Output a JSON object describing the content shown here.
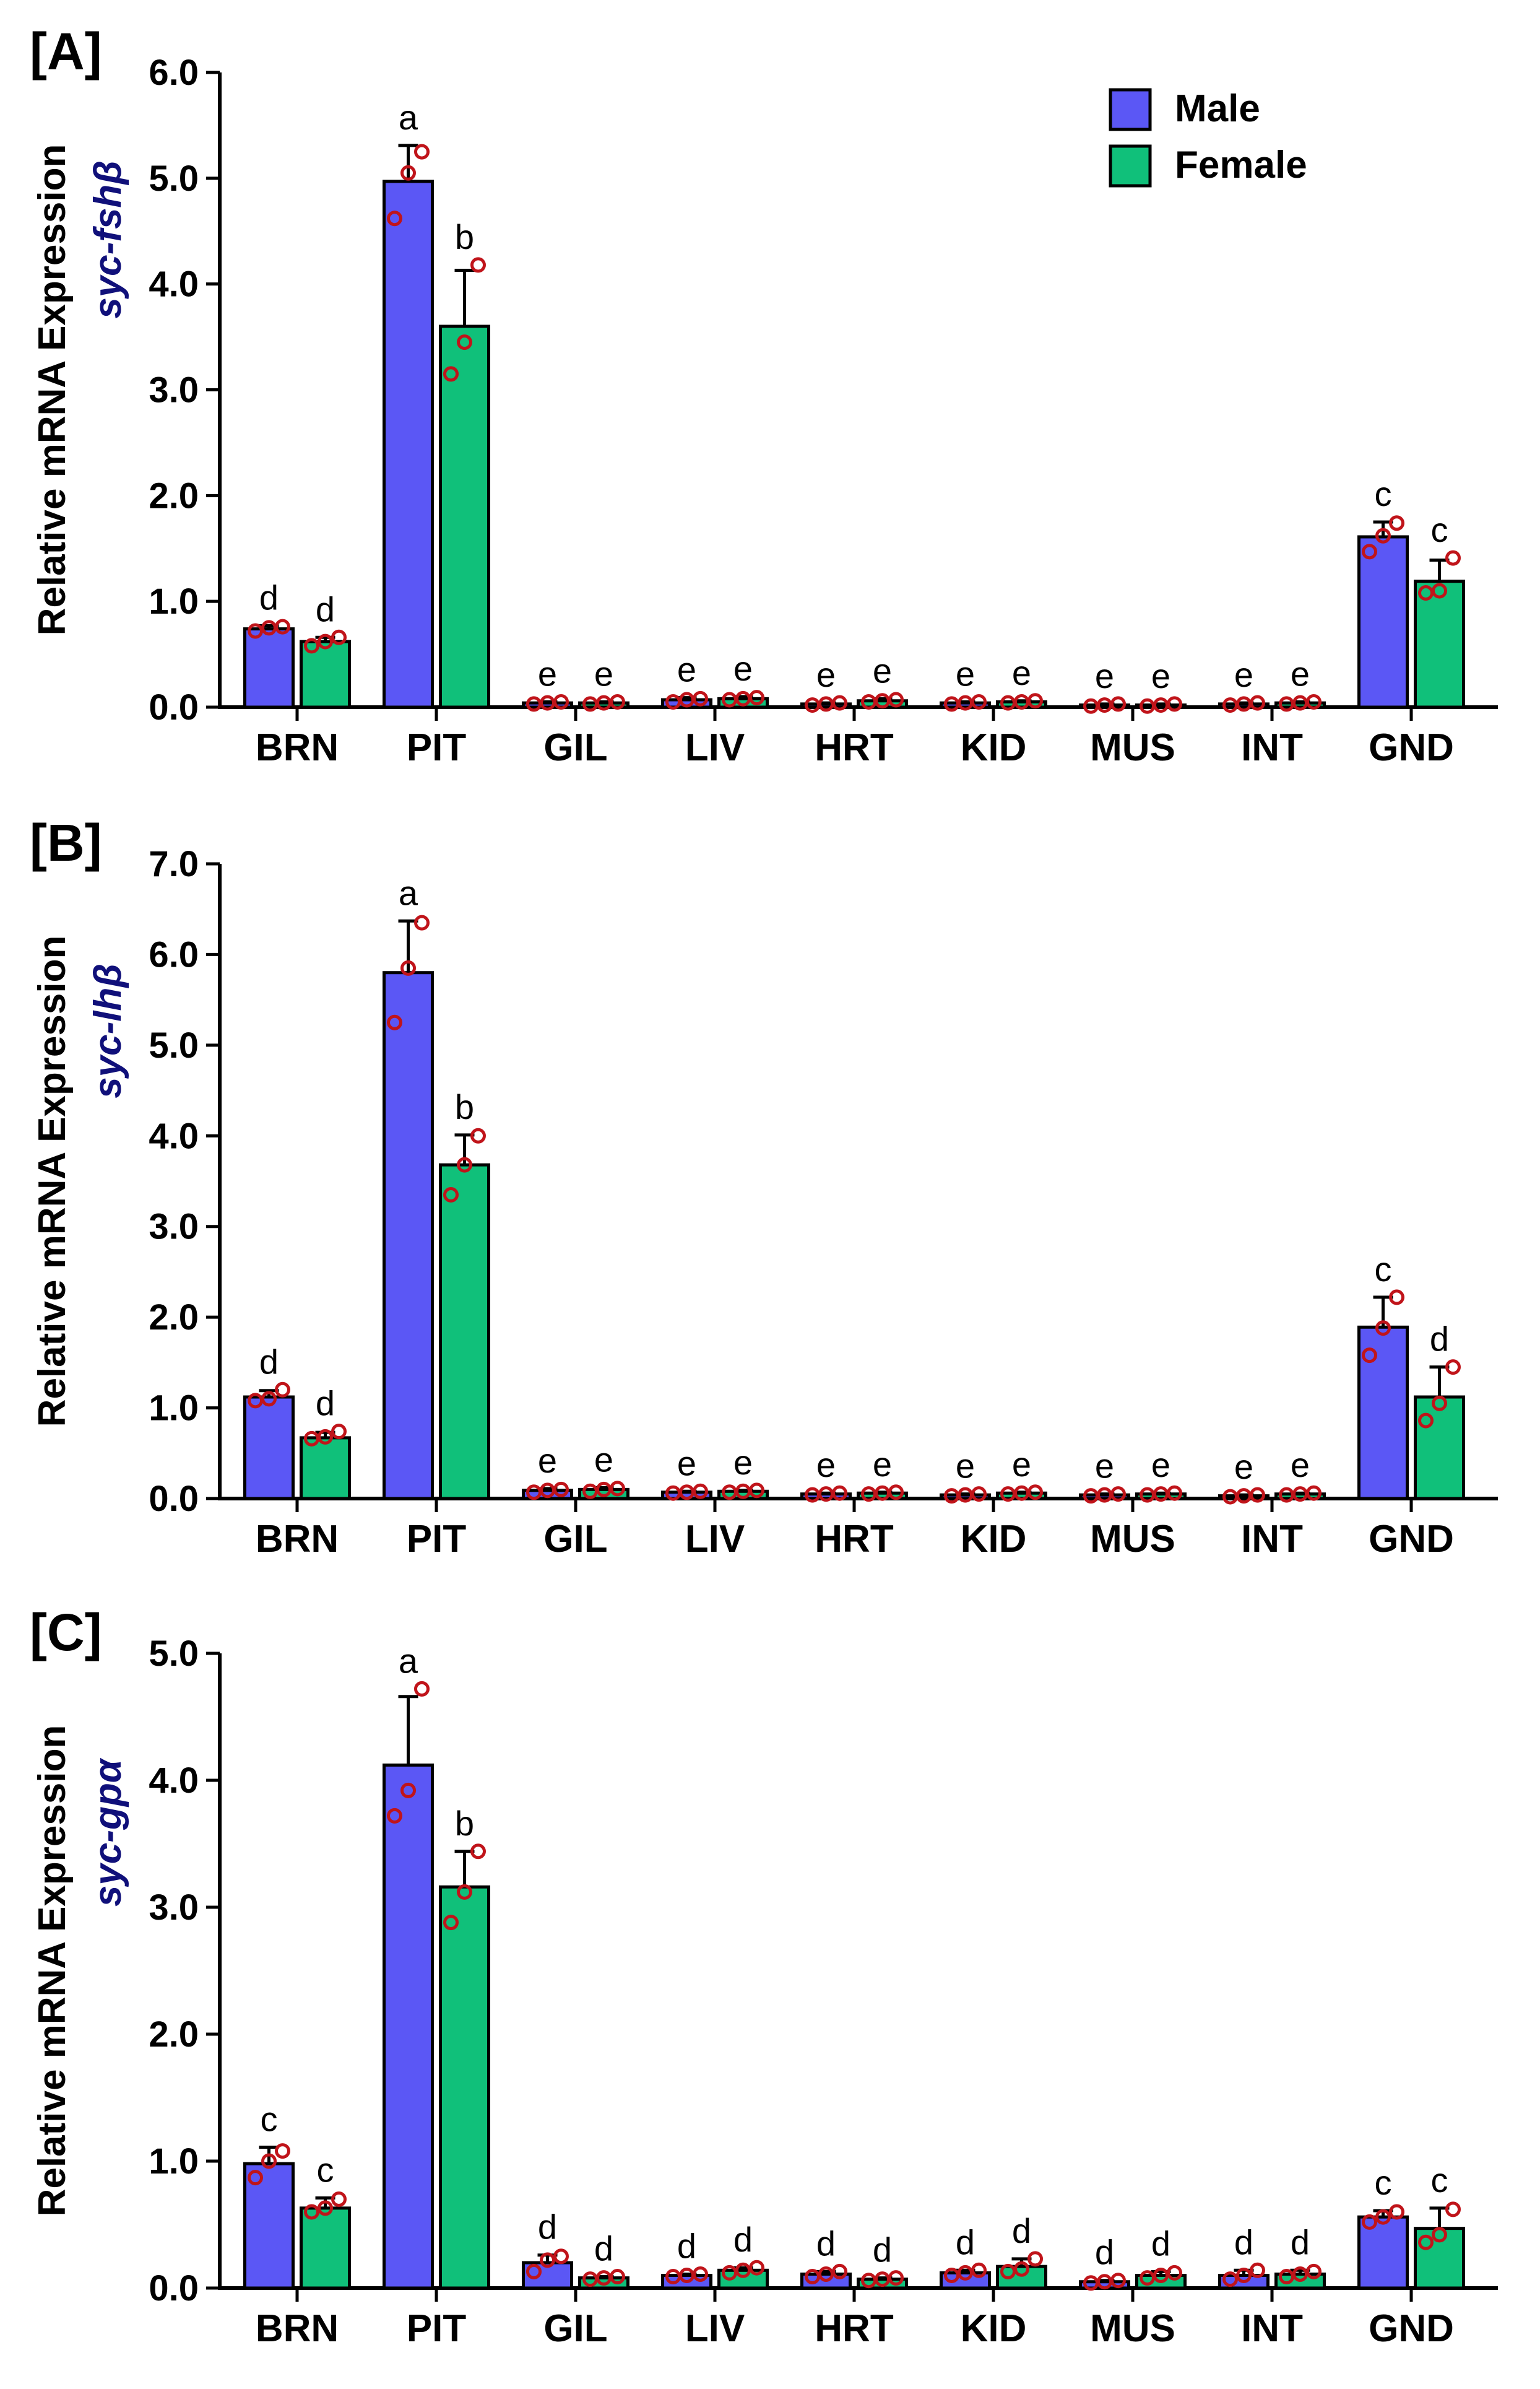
{
  "colors": {
    "male": "#5b57f5",
    "female": "#10c07a",
    "points": "#c0141a",
    "gene_label": "#10107a"
  },
  "legend": {
    "male_label": "Male",
    "female_label": "Female"
  },
  "chart_data": [
    {
      "type": "bar",
      "panel": "[A]",
      "ylabel": "Relative mRNA Expression",
      "gene": "syc-fshβ",
      "categories": [
        "BRN",
        "PIT",
        "GIL",
        "LIV",
        "HRT",
        "KID",
        "MUS",
        "INT",
        "GND"
      ],
      "ylim": [
        0,
        6
      ],
      "ytick_labels": [
        "0.0",
        "1.0",
        "2.0",
        "3.0",
        "4.0",
        "5.0",
        "6.0"
      ],
      "series": [
        {
          "name": "Male",
          "values": [
            0.74,
            4.97,
            0.04,
            0.07,
            0.03,
            0.04,
            0.02,
            0.03,
            1.61
          ],
          "errors": [
            0.03,
            0.34,
            0.01,
            0.02,
            0.01,
            0.01,
            0.01,
            0.01,
            0.14
          ],
          "letters": [
            "d",
            "a",
            "e",
            "e",
            "e",
            "e",
            "e",
            "e",
            "c"
          ],
          "points": [
            [
              0.72,
              0.75,
              0.76
            ],
            [
              4.62,
              5.05,
              5.25
            ],
            [
              0.03,
              0.04,
              0.05
            ],
            [
              0.05,
              0.07,
              0.08
            ],
            [
              0.02,
              0.03,
              0.04
            ],
            [
              0.03,
              0.04,
              0.05
            ],
            [
              0.01,
              0.02,
              0.03
            ],
            [
              0.02,
              0.03,
              0.04
            ],
            [
              1.47,
              1.62,
              1.74
            ]
          ]
        },
        {
          "name": "Female",
          "values": [
            0.62,
            3.6,
            0.04,
            0.08,
            0.06,
            0.05,
            0.02,
            0.04,
            1.19
          ],
          "errors": [
            0.04,
            0.53,
            0.01,
            0.02,
            0.02,
            0.01,
            0.01,
            0.01,
            0.2
          ],
          "letters": [
            "d",
            "b",
            "e",
            "e",
            "e",
            "e",
            "e",
            "e",
            "c"
          ],
          "points": [
            [
              0.58,
              0.62,
              0.66
            ],
            [
              3.15,
              3.45,
              4.18
            ],
            [
              0.03,
              0.04,
              0.05
            ],
            [
              0.07,
              0.08,
              0.09
            ],
            [
              0.05,
              0.06,
              0.07
            ],
            [
              0.04,
              0.05,
              0.06
            ],
            [
              0.01,
              0.02,
              0.03
            ],
            [
              0.03,
              0.04,
              0.05
            ],
            [
              1.08,
              1.1,
              1.41
            ]
          ]
        }
      ]
    },
    {
      "type": "bar",
      "panel": "[B]",
      "ylabel": "Relative mRNA Expression",
      "gene": "syc-lhβ",
      "categories": [
        "BRN",
        "PIT",
        "GIL",
        "LIV",
        "HRT",
        "KID",
        "MUS",
        "INT",
        "GND"
      ],
      "ylim": [
        0,
        7
      ],
      "ytick_labels": [
        "0.0",
        "1.0",
        "2.0",
        "3.0",
        "4.0",
        "5.0",
        "6.0",
        "7.0"
      ],
      "series": [
        {
          "name": "Male",
          "values": [
            1.12,
            5.8,
            0.09,
            0.07,
            0.05,
            0.04,
            0.04,
            0.03,
            1.89
          ],
          "errors": [
            0.07,
            0.57,
            0.02,
            0.01,
            0.01,
            0.01,
            0.01,
            0.01,
            0.33
          ],
          "letters": [
            "d",
            "a",
            "e",
            "e",
            "e",
            "e",
            "e",
            "e",
            "c"
          ],
          "points": [
            [
              1.08,
              1.1,
              1.2
            ],
            [
              5.25,
              5.85,
              6.35
            ],
            [
              0.07,
              0.09,
              0.1
            ],
            [
              0.06,
              0.07,
              0.08
            ],
            [
              0.04,
              0.05,
              0.06
            ],
            [
              0.03,
              0.04,
              0.05
            ],
            [
              0.03,
              0.04,
              0.05
            ],
            [
              0.02,
              0.03,
              0.04
            ],
            [
              1.58,
              1.88,
              2.22
            ]
          ]
        },
        {
          "name": "Female",
          "values": [
            0.67,
            3.68,
            0.1,
            0.08,
            0.06,
            0.06,
            0.05,
            0.05,
            1.12
          ],
          "errors": [
            0.06,
            0.33,
            0.02,
            0.01,
            0.01,
            0.01,
            0.01,
            0.01,
            0.33
          ],
          "letters": [
            "d",
            "b",
            "e",
            "e",
            "e",
            "e",
            "e",
            "e",
            "d"
          ],
          "points": [
            [
              0.66,
              0.68,
              0.74
            ],
            [
              3.35,
              3.68,
              4.0
            ],
            [
              0.08,
              0.1,
              0.11
            ],
            [
              0.07,
              0.08,
              0.09
            ],
            [
              0.05,
              0.06,
              0.07
            ],
            [
              0.05,
              0.06,
              0.07
            ],
            [
              0.04,
              0.05,
              0.06
            ],
            [
              0.04,
              0.05,
              0.06
            ],
            [
              0.86,
              1.05,
              1.45
            ]
          ]
        }
      ]
    },
    {
      "type": "bar",
      "panel": "[C]",
      "ylabel": "Relative mRNA Expression",
      "gene": "syc-gpα",
      "categories": [
        "BRN",
        "PIT",
        "GIL",
        "LIV",
        "HRT",
        "KID",
        "MUS",
        "INT",
        "GND"
      ],
      "ylim": [
        0,
        5
      ],
      "ytick_labels": [
        "0.0",
        "1.0",
        "2.0",
        "3.0",
        "4.0",
        "5.0"
      ],
      "series": [
        {
          "name": "Male",
          "values": [
            0.98,
            4.12,
            0.2,
            0.1,
            0.11,
            0.12,
            0.05,
            0.1,
            0.56
          ],
          "errors": [
            0.13,
            0.54,
            0.06,
            0.01,
            0.02,
            0.02,
            0.01,
            0.04,
            0.05
          ],
          "letters": [
            "c",
            "a",
            "d",
            "d",
            "d",
            "d",
            "d",
            "d",
            "c"
          ],
          "points": [
            [
              0.87,
              1.0,
              1.08
            ],
            [
              3.72,
              3.92,
              4.72
            ],
            [
              0.13,
              0.22,
              0.25
            ],
            [
              0.09,
              0.1,
              0.11
            ],
            [
              0.09,
              0.11,
              0.13
            ],
            [
              0.1,
              0.12,
              0.14
            ],
            [
              0.04,
              0.05,
              0.06
            ],
            [
              0.07,
              0.1,
              0.14
            ],
            [
              0.52,
              0.56,
              0.6
            ]
          ]
        },
        {
          "name": "Female",
          "values": [
            0.63,
            3.16,
            0.08,
            0.14,
            0.07,
            0.17,
            0.1,
            0.11,
            0.47
          ],
          "errors": [
            0.08,
            0.28,
            0.01,
            0.02,
            0.01,
            0.06,
            0.03,
            0.03,
            0.16
          ],
          "letters": [
            "c",
            "b",
            "d",
            "d",
            "d",
            "d",
            "d",
            "d",
            "c"
          ],
          "points": [
            [
              0.6,
              0.63,
              0.7
            ],
            [
              2.88,
              3.12,
              3.44
            ],
            [
              0.07,
              0.08,
              0.09
            ],
            [
              0.12,
              0.14,
              0.16
            ],
            [
              0.06,
              0.07,
              0.08
            ],
            [
              0.13,
              0.15,
              0.23
            ],
            [
              0.08,
              0.1,
              0.12
            ],
            [
              0.09,
              0.11,
              0.13
            ],
            [
              0.36,
              0.42,
              0.62
            ]
          ]
        }
      ]
    }
  ]
}
